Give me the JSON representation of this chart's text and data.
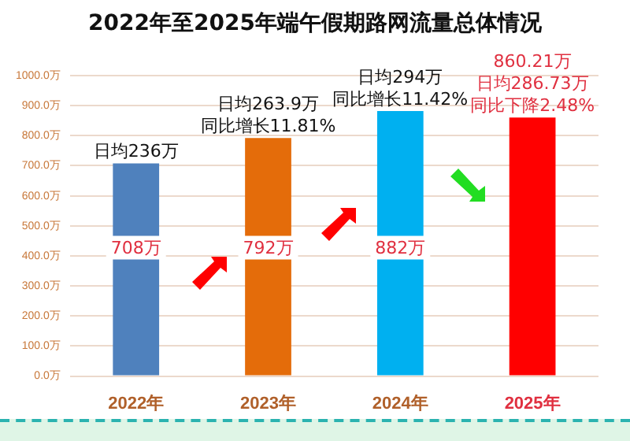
{
  "chart_data": {
    "type": "bar",
    "title": "2022年至2025年端午假期路网流量总体情况",
    "categories": [
      "2022年",
      "2023年",
      "2024年",
      "2025年"
    ],
    "values": [
      708,
      792,
      882,
      860.21
    ],
    "colors": [
      "#4f81bd",
      "#e46c0a",
      "#00b0f0",
      "#ff0000"
    ],
    "value_labels": [
      "708万",
      "792万",
      "882万",
      "860.21万"
    ],
    "ylim": [
      0,
      1000
    ],
    "yticks": [
      {
        "value": 0,
        "label": "0.0万"
      },
      {
        "value": 100,
        "label": "100.0万"
      },
      {
        "value": 200,
        "label": "200.0万"
      },
      {
        "value": 300,
        "label": "300.0万"
      },
      {
        "value": 400,
        "label": "400.0万"
      },
      {
        "value": 500,
        "label": "500.0万"
      },
      {
        "value": 600,
        "label": "600.0万"
      },
      {
        "value": 700,
        "label": "700.0万"
      },
      {
        "value": 800,
        "label": "800.0万"
      },
      {
        "value": 900,
        "label": "900.0万"
      },
      {
        "value": 1000,
        "label": "1000.0万"
      }
    ],
    "grid": "y",
    "legend": false,
    "annotations": [
      {
        "text": "日均236万",
        "x": "2022年",
        "y": 708
      },
      {
        "text": "日均263.9万",
        "x": "2023年",
        "y": 792
      },
      {
        "text": "同比增长11.81%",
        "x": "2023年",
        "y": 792
      },
      {
        "text": "日均294万",
        "x": "2024年",
        "y": 882
      },
      {
        "text": "同比增长11.42%",
        "x": "2024年",
        "y": 882
      },
      {
        "text": "日均286.73万",
        "x": "2025年",
        "y": 860.21
      },
      {
        "text": "同比下降2.48%",
        "x": "2025年",
        "y": 860.21
      }
    ]
  }
}
